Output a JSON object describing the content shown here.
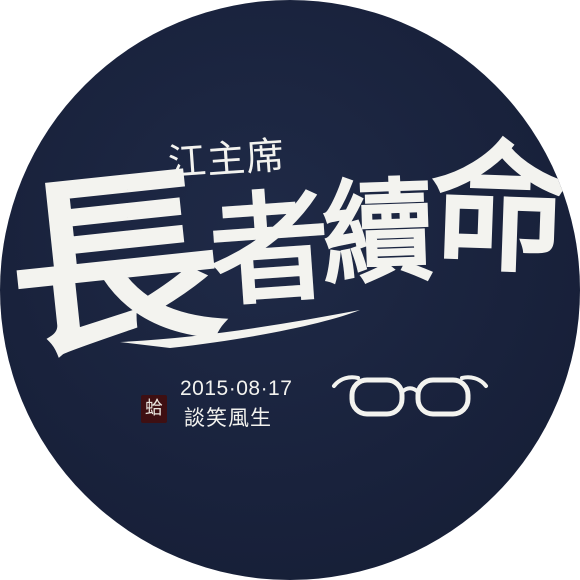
{
  "artwork": {
    "subtitle": "江主席",
    "calligraphy": [
      "長",
      "者",
      "續",
      "命"
    ],
    "seal": "蛤",
    "date": "2015·08·17",
    "caption": "談笑風生",
    "icon": "glasses-icon",
    "colors": {
      "background": "#19223c",
      "ink": "#f3f3ef",
      "seal": "#3e0f12"
    }
  }
}
